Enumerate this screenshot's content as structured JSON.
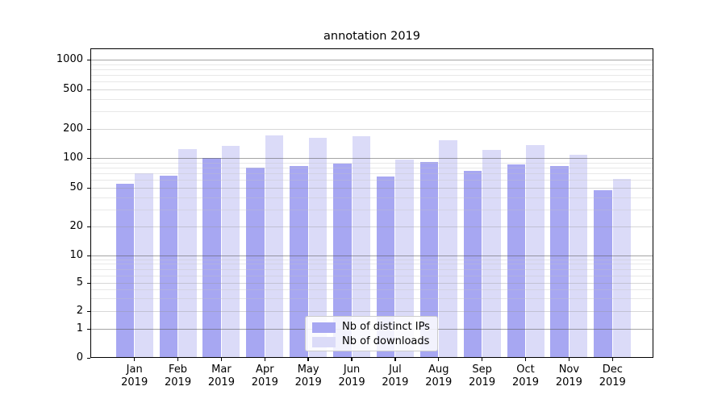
{
  "chart_data": {
    "type": "bar",
    "title": "annotation 2019",
    "xlabel": "",
    "ylabel": "",
    "yscale": "symlog",
    "ylim": [
      0,
      1300
    ],
    "grid": true,
    "legend_position": "lower center inside plot",
    "year": "2019",
    "categories": [
      "Jan",
      "Feb",
      "Mar",
      "Apr",
      "May",
      "Jun",
      "Jul",
      "Aug",
      "Sep",
      "Oct",
      "Nov",
      "Dec"
    ],
    "y_ticks": [
      0,
      1,
      2,
      5,
      10,
      20,
      50,
      100,
      200,
      500,
      1000
    ],
    "series": [
      {
        "name": "Nb of distinct IPs",
        "color": "#a7a7f2",
        "values": [
          55,
          66,
          100,
          80,
          83,
          88,
          65,
          91,
          74,
          86,
          83,
          47
        ]
      },
      {
        "name": "Nb of downloads",
        "color": "#dbdbf8",
        "values": [
          70,
          124,
          134,
          171,
          163,
          167,
          96,
          152,
          122,
          135,
          107,
          62
        ]
      }
    ]
  }
}
